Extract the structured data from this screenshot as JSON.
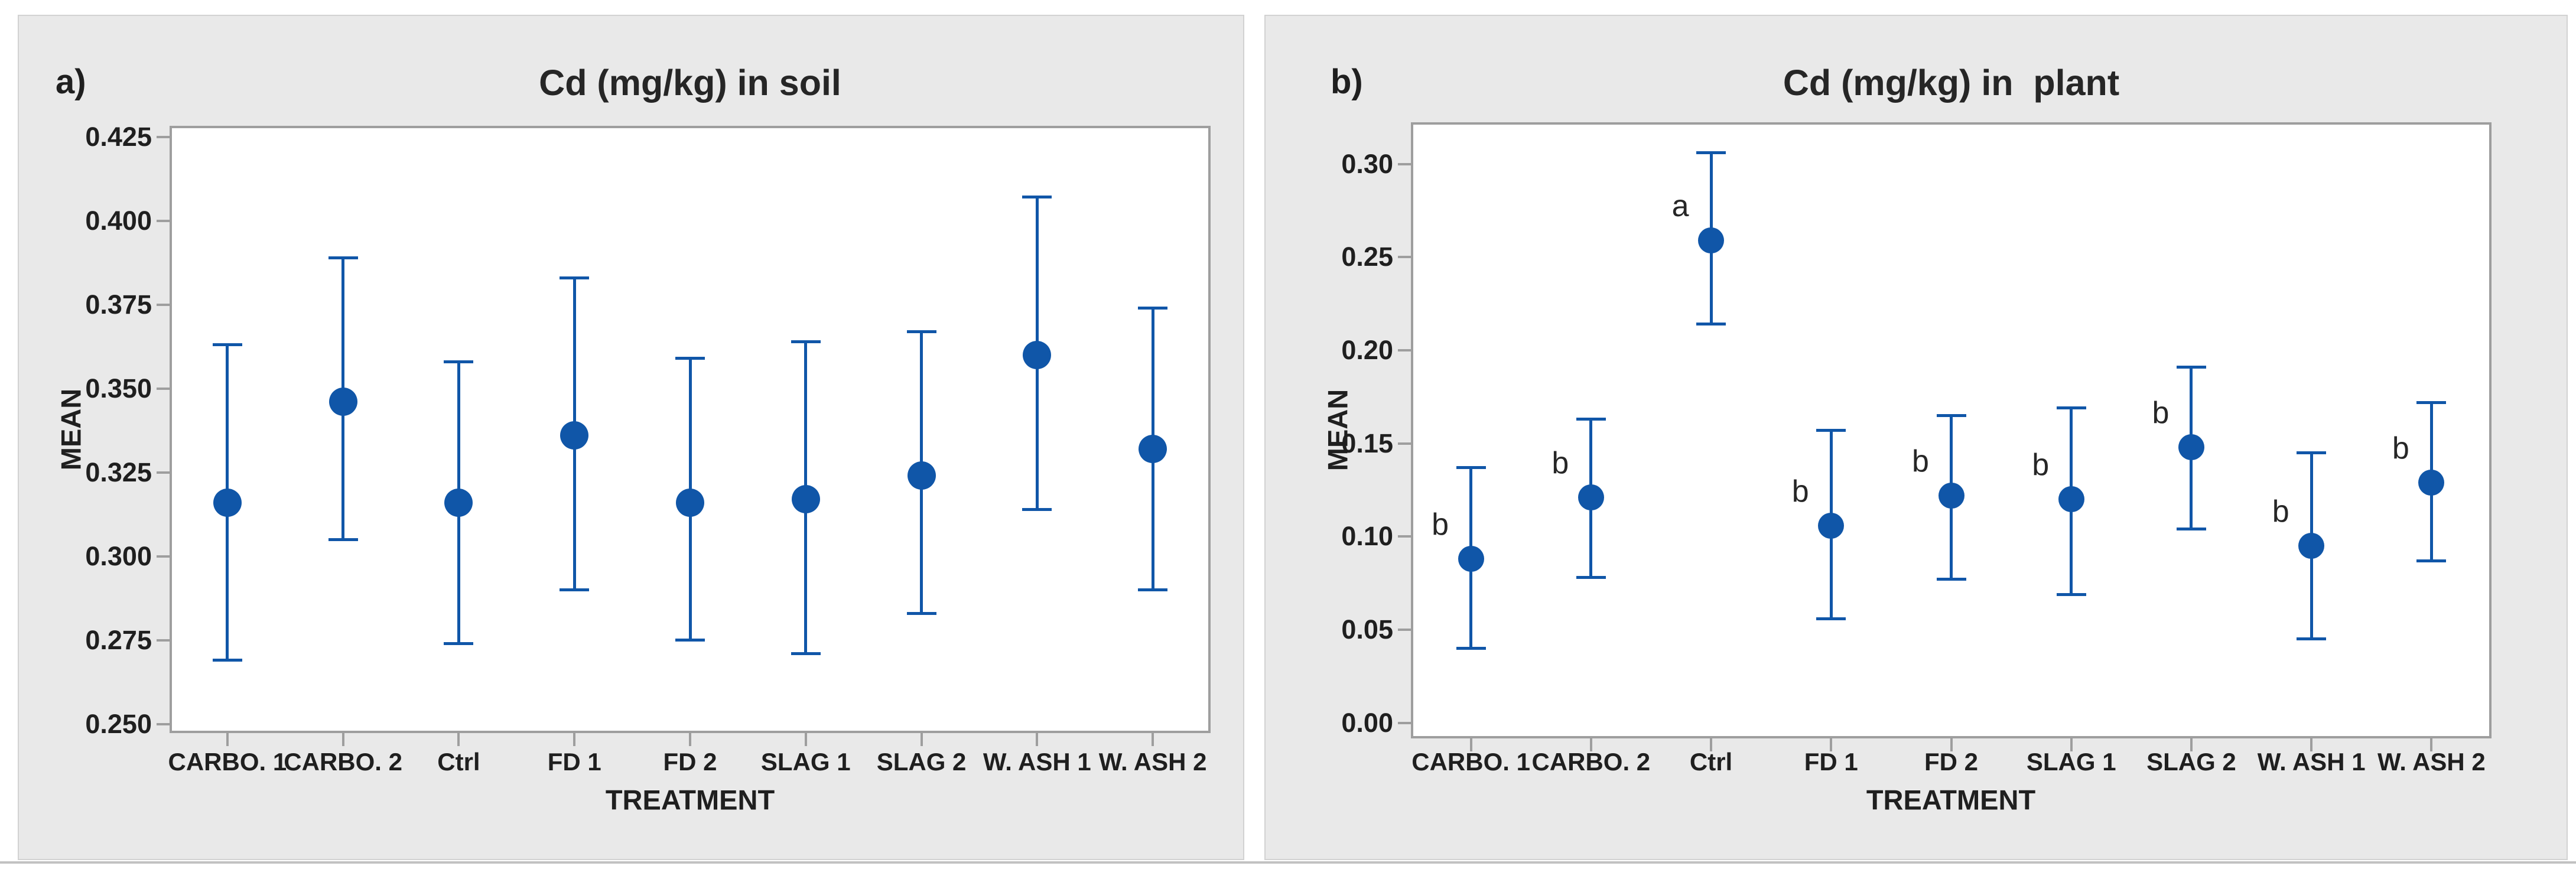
{
  "colors": {
    "data_blue": "#1056a8",
    "card_bg": "#e9e9e9",
    "plot_border": "#9e9e9e",
    "text": "#1f1f1f",
    "page_bg": "#ffffff"
  },
  "panels": [
    {
      "corner_label": "a)"
    },
    {
      "corner_label": "b)"
    }
  ],
  "chart_data": [
    {
      "type": "scatter",
      "subtype": "interval-plot-mean-with-error-bars",
      "title": "Cd (mg/kg) in soil",
      "xlabel": "TREATMENT",
      "ylabel": "MEAN",
      "grid": false,
      "legend": false,
      "categories": [
        "CARBO. 1",
        "CARBO. 2",
        "Ctrl",
        "FD 1",
        "FD 2",
        "SLAG 1",
        "SLAG 2",
        "W. ASH 1",
        "W. ASH 2"
      ],
      "series": [
        {
          "name": "mean",
          "values": [
            0.316,
            0.346,
            0.316,
            0.336,
            0.316,
            0.317,
            0.324,
            0.36,
            0.332
          ]
        },
        {
          "name": "ci_low",
          "values": [
            0.269,
            0.305,
            0.274,
            0.29,
            0.275,
            0.271,
            0.283,
            0.314,
            0.29
          ]
        },
        {
          "name": "ci_high",
          "values": [
            0.363,
            0.389,
            0.358,
            0.383,
            0.359,
            0.364,
            0.367,
            0.407,
            0.374
          ]
        }
      ],
      "letters": [
        "",
        "",
        "",
        "",
        "",
        "",
        "",
        "",
        ""
      ],
      "ylim": [
        0.2473,
        0.4283
      ],
      "yticks": [
        {
          "v": 0.425,
          "label": "0.425"
        },
        {
          "v": 0.4,
          "label": "0.400"
        },
        {
          "v": 0.375,
          "label": "0.375"
        },
        {
          "v": 0.35,
          "label": "0.350"
        },
        {
          "v": 0.325,
          "label": "0.325"
        },
        {
          "v": 0.3,
          "label": "0.300"
        },
        {
          "v": 0.275,
          "label": "0.275"
        },
        {
          "v": 0.25,
          "label": "0.250"
        }
      ]
    },
    {
      "type": "scatter",
      "subtype": "interval-plot-mean-with-error-bars",
      "title": "Cd (mg/kg) in  plant",
      "xlabel": "TREATMENT",
      "ylabel": "MEAN",
      "grid": false,
      "legend": false,
      "categories": [
        "CARBO. 1",
        "CARBO. 2",
        "Ctrl",
        "FD 1",
        "FD 2",
        "SLAG 1",
        "SLAG 2",
        "W. ASH 1",
        "W. ASH 2"
      ],
      "series": [
        {
          "name": "mean",
          "values": [
            0.088,
            0.121,
            0.259,
            0.106,
            0.122,
            0.12,
            0.148,
            0.095,
            0.129
          ]
        },
        {
          "name": "ci_low",
          "values": [
            0.04,
            0.078,
            0.214,
            0.056,
            0.077,
            0.069,
            0.104,
            0.045,
            0.087
          ]
        },
        {
          "name": "ci_high",
          "values": [
            0.137,
            0.163,
            0.306,
            0.157,
            0.165,
            0.169,
            0.191,
            0.145,
            0.172
          ]
        }
      ],
      "letters": [
        "b",
        "b",
        "a",
        "b",
        "b",
        "b",
        "b",
        "b",
        "b"
      ],
      "ylim": [
        -0.0083,
        0.3224
      ],
      "yticks": [
        {
          "v": 0.3,
          "label": "0.30"
        },
        {
          "v": 0.25,
          "label": "0.25"
        },
        {
          "v": 0.2,
          "label": "0.20"
        },
        {
          "v": 0.15,
          "label": "0.15"
        },
        {
          "v": 0.1,
          "label": "0.10"
        },
        {
          "v": 0.05,
          "label": "0.05"
        },
        {
          "v": 0.0,
          "label": "0.00"
        }
      ]
    }
  ]
}
